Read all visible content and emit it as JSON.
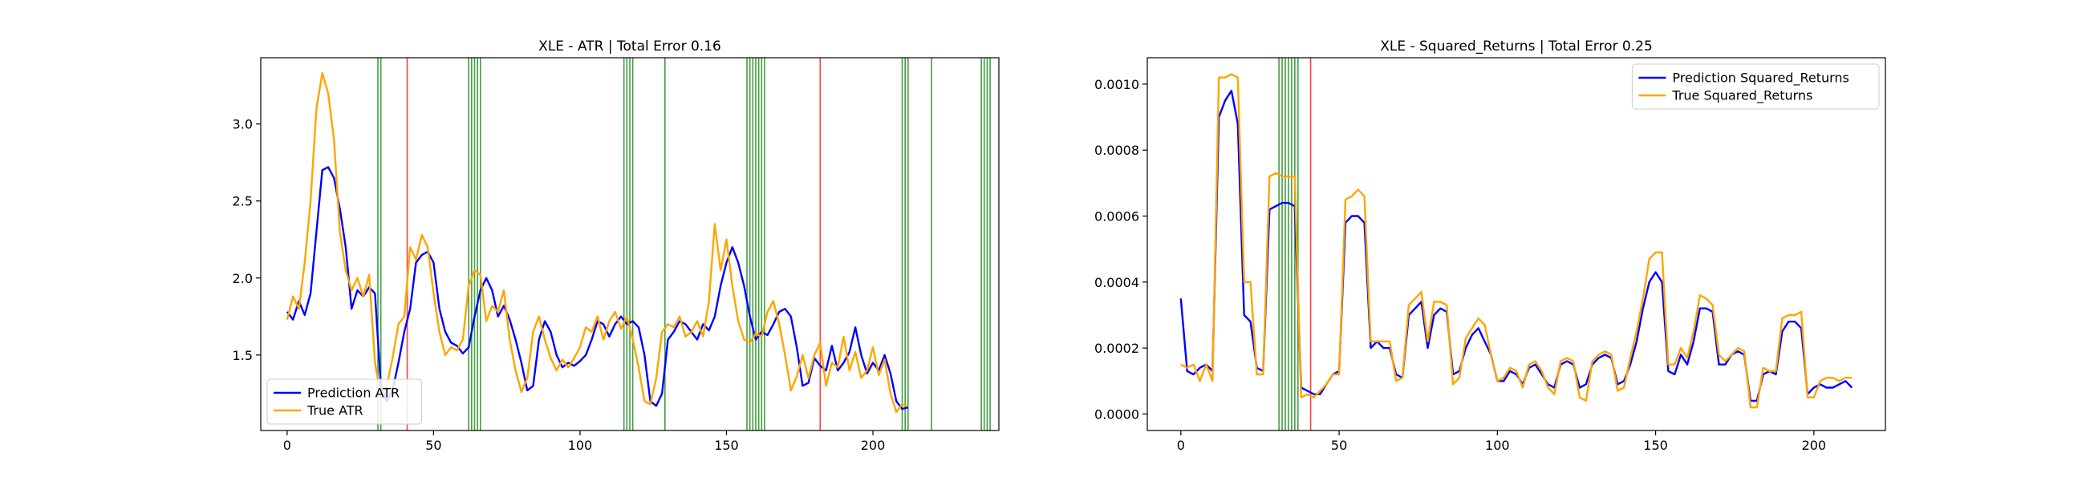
{
  "chart_data": [
    {
      "type": "line",
      "title": "XLE - ATR | Total Error 0.16",
      "xlabel": "",
      "ylabel": "",
      "xlim": [
        -9,
        243
      ],
      "ylim": [
        1.01,
        3.43
      ],
      "xticks": [
        0,
        50,
        100,
        150,
        200
      ],
      "xtick_labels": [
        "0",
        "50",
        "100",
        "150",
        "200"
      ],
      "yticks": [
        1.5,
        2.0,
        2.5,
        3.0
      ],
      "ytick_labels": [
        "1.5",
        "2.0",
        "2.5",
        "3.0"
      ],
      "grid": false,
      "legend_position": "lower-left",
      "series": [
        {
          "name": "Prediction ATR",
          "color": "#0000ff",
          "x": [
            0,
            2,
            4,
            6,
            8,
            10,
            12,
            14,
            16,
            18,
            20,
            22,
            24,
            26,
            28,
            30,
            32,
            34,
            36,
            38,
            40,
            42,
            44,
            46,
            48,
            50,
            52,
            54,
            56,
            58,
            60,
            62,
            64,
            66,
            68,
            70,
            72,
            74,
            76,
            78,
            80,
            82,
            84,
            86,
            88,
            90,
            92,
            94,
            96,
            98,
            100,
            102,
            104,
            106,
            108,
            110,
            112,
            114,
            116,
            118,
            120,
            122,
            124,
            126,
            128,
            130,
            132,
            134,
            136,
            138,
            140,
            142,
            144,
            146,
            148,
            150,
            152,
            154,
            156,
            158,
            160,
            162,
            164,
            166,
            168,
            170,
            172,
            174,
            176,
            178,
            180,
            182,
            184,
            186,
            188,
            190,
            192,
            194,
            196,
            198,
            200,
            202,
            204,
            206,
            208,
            210,
            212
          ],
          "y": [
            1.78,
            1.73,
            1.85,
            1.76,
            1.9,
            2.3,
            2.7,
            2.72,
            2.65,
            2.45,
            2.2,
            1.8,
            1.92,
            1.88,
            1.94,
            1.9,
            1.3,
            1.2,
            1.27,
            1.45,
            1.65,
            1.8,
            2.1,
            2.15,
            2.17,
            2.1,
            1.8,
            1.65,
            1.58,
            1.56,
            1.51,
            1.55,
            1.75,
            1.92,
            2.0,
            1.92,
            1.75,
            1.82,
            1.73,
            1.6,
            1.45,
            1.27,
            1.3,
            1.6,
            1.72,
            1.65,
            1.5,
            1.42,
            1.45,
            1.43,
            1.46,
            1.5,
            1.6,
            1.72,
            1.7,
            1.62,
            1.7,
            1.75,
            1.7,
            1.72,
            1.68,
            1.5,
            1.2,
            1.17,
            1.25,
            1.6,
            1.65,
            1.72,
            1.7,
            1.65,
            1.6,
            1.7,
            1.66,
            1.75,
            1.95,
            2.1,
            2.2,
            2.1,
            1.95,
            1.75,
            1.6,
            1.65,
            1.63,
            1.7,
            1.78,
            1.8,
            1.75,
            1.55,
            1.3,
            1.32,
            1.48,
            1.43,
            1.4,
            1.56,
            1.4,
            1.45,
            1.52,
            1.68,
            1.5,
            1.38,
            1.45,
            1.4,
            1.5,
            1.38,
            1.2,
            1.15,
            1.16
          ]
        },
        {
          "name": "True ATR",
          "color": "#ffa500",
          "x": [
            0,
            2,
            4,
            6,
            8,
            10,
            12,
            14,
            16,
            18,
            20,
            22,
            24,
            26,
            28,
            30,
            32,
            34,
            36,
            38,
            40,
            42,
            44,
            46,
            48,
            50,
            52,
            54,
            56,
            58,
            60,
            62,
            64,
            66,
            68,
            70,
            72,
            74,
            76,
            78,
            80,
            82,
            84,
            86,
            88,
            90,
            92,
            94,
            96,
            98,
            100,
            102,
            104,
            106,
            108,
            110,
            112,
            114,
            116,
            118,
            120,
            122,
            124,
            126,
            128,
            130,
            132,
            134,
            136,
            138,
            140,
            142,
            144,
            146,
            148,
            150,
            152,
            154,
            156,
            158,
            160,
            162,
            164,
            166,
            168,
            170,
            172,
            174,
            176,
            178,
            180,
            182,
            184,
            186,
            188,
            190,
            192,
            194,
            196,
            198,
            200,
            202,
            204,
            206,
            208,
            210,
            212
          ],
          "y": [
            1.73,
            1.88,
            1.8,
            2.1,
            2.5,
            3.1,
            3.33,
            3.2,
            2.9,
            2.3,
            2.05,
            1.92,
            2.0,
            1.88,
            2.02,
            1.45,
            1.23,
            1.3,
            1.48,
            1.7,
            1.75,
            2.2,
            2.12,
            2.28,
            2.2,
            1.9,
            1.65,
            1.5,
            1.55,
            1.53,
            1.6,
            1.95,
            2.05,
            2.02,
            1.72,
            1.82,
            1.78,
            1.92,
            1.6,
            1.4,
            1.26,
            1.35,
            1.65,
            1.75,
            1.6,
            1.48,
            1.4,
            1.47,
            1.42,
            1.48,
            1.55,
            1.68,
            1.65,
            1.75,
            1.6,
            1.72,
            1.78,
            1.67,
            1.75,
            1.6,
            1.42,
            1.2,
            1.18,
            1.35,
            1.65,
            1.7,
            1.68,
            1.75,
            1.62,
            1.65,
            1.72,
            1.62,
            1.85,
            2.35,
            2.05,
            2.25,
            1.95,
            1.72,
            1.6,
            1.58,
            1.64,
            1.62,
            1.78,
            1.85,
            1.7,
            1.5,
            1.27,
            1.36,
            1.5,
            1.35,
            1.5,
            1.58,
            1.3,
            1.45,
            1.42,
            1.62,
            1.4,
            1.52,
            1.35,
            1.4,
            1.55,
            1.37,
            1.47,
            1.25,
            1.13,
            1.18,
            1.17
          ]
        }
      ],
      "vlines": [
        {
          "x": 31,
          "color": "#008000"
        },
        {
          "x": 32,
          "color": "#008000"
        },
        {
          "x": 41,
          "color": "#ff0000"
        },
        {
          "x": 62,
          "color": "#008000"
        },
        {
          "x": 63,
          "color": "#008000"
        },
        {
          "x": 64,
          "color": "#008000"
        },
        {
          "x": 65,
          "color": "#008000"
        },
        {
          "x": 66,
          "color": "#008000"
        },
        {
          "x": 115,
          "color": "#008000"
        },
        {
          "x": 116,
          "color": "#008000"
        },
        {
          "x": 117,
          "color": "#008000"
        },
        {
          "x": 118,
          "color": "#008000"
        },
        {
          "x": 129,
          "color": "#008000"
        },
        {
          "x": 157,
          "color": "#008000"
        },
        {
          "x": 158,
          "color": "#008000"
        },
        {
          "x": 159,
          "color": "#008000"
        },
        {
          "x": 160,
          "color": "#008000"
        },
        {
          "x": 161,
          "color": "#008000"
        },
        {
          "x": 162,
          "color": "#008000"
        },
        {
          "x": 163,
          "color": "#008000"
        },
        {
          "x": 182,
          "color": "#ff0000"
        },
        {
          "x": 210,
          "color": "#008000"
        },
        {
          "x": 211,
          "color": "#008000"
        },
        {
          "x": 212,
          "color": "#008000"
        },
        {
          "x": 220,
          "color": "#008000"
        },
        {
          "x": 237,
          "color": "#008000"
        },
        {
          "x": 238,
          "color": "#008000"
        },
        {
          "x": 239,
          "color": "#008000"
        },
        {
          "x": 240,
          "color": "#008000"
        }
      ]
    },
    {
      "type": "line",
      "title": "XLE - Squared_Returns | Total Error 0.25",
      "xlabel": "",
      "ylabel": "",
      "xlim": [
        -10.6,
        222.6
      ],
      "ylim": [
        -5e-05,
        0.00108
      ],
      "xticks": [
        0,
        50,
        100,
        150,
        200
      ],
      "xtick_labels": [
        "0",
        "50",
        "100",
        "150",
        "200"
      ],
      "yticks": [
        0.0,
        0.0002,
        0.0004,
        0.0006,
        0.0008,
        0.001
      ],
      "ytick_labels": [
        "0.0000",
        "0.0002",
        "0.0004",
        "0.0006",
        "0.0008",
        "0.0010"
      ],
      "grid": false,
      "legend_position": "upper-right",
      "series": [
        {
          "name": "Prediction Squared_Returns",
          "color": "#0000ff",
          "x": [
            0,
            2,
            4,
            6,
            8,
            10,
            12,
            14,
            16,
            18,
            20,
            22,
            24,
            26,
            28,
            30,
            32,
            34,
            36,
            38,
            40,
            42,
            44,
            46,
            48,
            50,
            52,
            54,
            56,
            58,
            60,
            62,
            64,
            66,
            68,
            70,
            72,
            74,
            76,
            78,
            80,
            82,
            84,
            86,
            88,
            90,
            92,
            94,
            96,
            98,
            100,
            102,
            104,
            106,
            108,
            110,
            112,
            114,
            116,
            118,
            120,
            122,
            124,
            126,
            128,
            130,
            132,
            134,
            136,
            138,
            140,
            142,
            144,
            146,
            148,
            150,
            152,
            154,
            156,
            158,
            160,
            162,
            164,
            166,
            168,
            170,
            172,
            174,
            176,
            178,
            180,
            182,
            184,
            186,
            188,
            190,
            192,
            194,
            196,
            198,
            200,
            202,
            204,
            206,
            208,
            210,
            212
          ],
          "y": [
            0.00035,
            0.00013,
            0.00012,
            0.00014,
            0.00015,
            0.00013,
            0.0009,
            0.00095,
            0.00098,
            0.00088,
            0.0003,
            0.00028,
            0.00014,
            0.00013,
            0.00062,
            0.00063,
            0.00064,
            0.00064,
            0.00063,
            8e-05,
            7e-05,
            6e-05,
            6e-05,
            9e-05,
            0.00012,
            0.00013,
            0.00058,
            0.0006,
            0.0006,
            0.00058,
            0.0002,
            0.00022,
            0.0002,
            0.0002,
            0.00012,
            0.00011,
            0.0003,
            0.00032,
            0.00034,
            0.0002,
            0.0003,
            0.00032,
            0.00031,
            0.00012,
            0.00013,
            0.0002,
            0.00024,
            0.00026,
            0.00022,
            0.00018,
            0.0001,
            0.0001,
            0.00013,
            0.00012,
            9e-05,
            0.00014,
            0.00015,
            0.00012,
            9e-05,
            8e-05,
            0.00015,
            0.00016,
            0.00015,
            8e-05,
            9e-05,
            0.00015,
            0.00017,
            0.00018,
            0.00017,
            9e-05,
            0.0001,
            0.00015,
            0.00022,
            0.00032,
            0.0004,
            0.00043,
            0.0004,
            0.00013,
            0.00012,
            0.00018,
            0.00015,
            0.00022,
            0.00032,
            0.00032,
            0.00031,
            0.00015,
            0.00015,
            0.00018,
            0.00019,
            0.00018,
            4e-05,
            4e-05,
            0.00012,
            0.00013,
            0.00012,
            0.00025,
            0.00028,
            0.00028,
            0.00026,
            6e-05,
            8e-05,
            9e-05,
            8e-05,
            8e-05,
            9e-05,
            0.0001,
            8e-05
          ]
        },
        {
          "name": "True Squared_Returns",
          "color": "#ffa500",
          "x": [
            0,
            2,
            4,
            6,
            8,
            10,
            12,
            14,
            16,
            18,
            20,
            22,
            24,
            26,
            28,
            30,
            32,
            34,
            36,
            38,
            40,
            42,
            44,
            46,
            48,
            50,
            52,
            54,
            56,
            58,
            60,
            62,
            64,
            66,
            68,
            70,
            72,
            74,
            76,
            78,
            80,
            82,
            84,
            86,
            88,
            90,
            92,
            94,
            96,
            98,
            100,
            102,
            104,
            106,
            108,
            110,
            112,
            114,
            116,
            118,
            120,
            122,
            124,
            126,
            128,
            130,
            132,
            134,
            136,
            138,
            140,
            142,
            144,
            146,
            148,
            150,
            152,
            154,
            156,
            158,
            160,
            162,
            164,
            166,
            168,
            170,
            172,
            174,
            176,
            178,
            180,
            182,
            184,
            186,
            188,
            190,
            192,
            194,
            196,
            198,
            200,
            202,
            204,
            206,
            208,
            210,
            212
          ],
          "y": [
            0.00015,
            0.00014,
            0.00015,
            0.0001,
            0.00015,
            0.0001,
            0.00102,
            0.00102,
            0.00103,
            0.00102,
            0.0004,
            0.0004,
            0.00012,
            0.00012,
            0.00072,
            0.00073,
            0.00072,
            0.00072,
            0.00072,
            5e-05,
            6e-05,
            5e-05,
            7e-05,
            9e-05,
            0.00012,
            0.00012,
            0.00065,
            0.00066,
            0.00068,
            0.00066,
            0.00022,
            0.00022,
            0.00022,
            0.00022,
            0.0001,
            0.00011,
            0.00033,
            0.00035,
            0.00037,
            0.00022,
            0.00034,
            0.00034,
            0.00033,
            9e-05,
            0.00011,
            0.00023,
            0.00026,
            0.00029,
            0.00027,
            0.00018,
            0.0001,
            0.00011,
            0.00014,
            0.00013,
            8e-05,
            0.00015,
            0.00016,
            0.00013,
            8e-05,
            6e-05,
            0.00016,
            0.00017,
            0.00016,
            5e-05,
            4e-05,
            0.00016,
            0.00018,
            0.00019,
            0.00018,
            7e-05,
            8e-05,
            0.00017,
            0.00025,
            0.00035,
            0.00047,
            0.00049,
            0.00049,
            0.00015,
            0.00015,
            0.0002,
            0.00017,
            0.00025,
            0.00036,
            0.00035,
            0.00033,
            0.00018,
            0.00016,
            0.00018,
            0.0002,
            0.00019,
            2e-05,
            2e-05,
            0.00014,
            0.00013,
            0.00013,
            0.00029,
            0.0003,
            0.0003,
            0.00031,
            5e-05,
            5e-05,
            0.0001,
            0.00011,
            0.00011,
            0.0001,
            0.00011,
            0.00011
          ]
        }
      ],
      "vlines": [
        {
          "x": 31,
          "color": "#008000"
        },
        {
          "x": 32,
          "color": "#008000"
        },
        {
          "x": 33,
          "color": "#008000"
        },
        {
          "x": 34,
          "color": "#008000"
        },
        {
          "x": 35,
          "color": "#008000"
        },
        {
          "x": 36,
          "color": "#008000"
        },
        {
          "x": 37,
          "color": "#008000"
        },
        {
          "x": 41,
          "color": "#ff0000"
        }
      ]
    }
  ]
}
